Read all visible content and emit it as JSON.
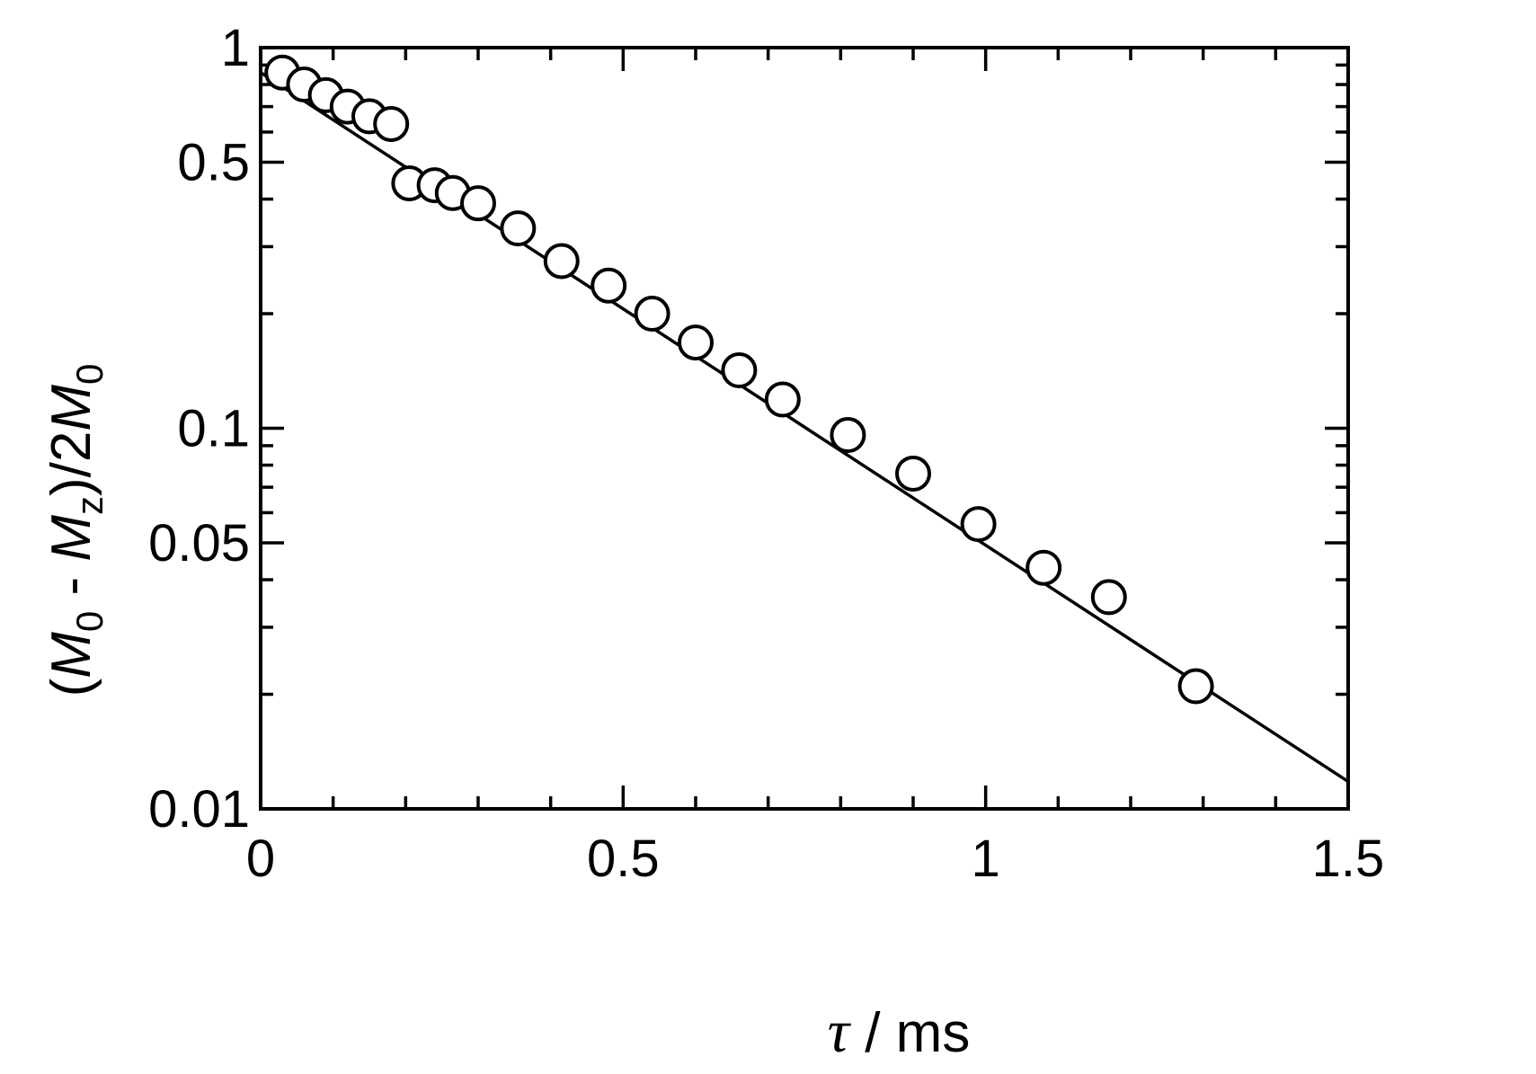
{
  "chart_data": {
    "type": "scatter",
    "xlabel": {
      "symbol": "τ",
      "rest": " / ms"
    },
    "ylabel": {
      "p1": "(",
      "M": "M",
      "sub0": "0",
      "minus": " - ",
      "Mz": "M",
      "subz": "z",
      "p2": ")/2",
      "M2": "M",
      "sub2": "0"
    },
    "xlim": [
      0,
      1.5
    ],
    "ylim": [
      0.01,
      1
    ],
    "yscale": "log",
    "x_ticks": [
      {
        "value": 0,
        "label": "0"
      },
      {
        "value": 0.5,
        "label": "0.5"
      },
      {
        "value": 1,
        "label": "1"
      },
      {
        "value": 1.5,
        "label": "1.5"
      }
    ],
    "x_minor_ticks": [
      0.1,
      0.2,
      0.3,
      0.4,
      0.6,
      0.7,
      0.8,
      0.9,
      1.1,
      1.2,
      1.3,
      1.4
    ],
    "y_ticks": [
      {
        "value": 1,
        "label": "1"
      },
      {
        "value": 0.5,
        "label": "0.5"
      },
      {
        "value": 0.1,
        "label": "0.1"
      },
      {
        "value": 0.05,
        "label": "0.05"
      },
      {
        "value": 0.01,
        "label": "0.01"
      }
    ],
    "y_minor_ticks": [
      0.02,
      0.03,
      0.04,
      0.06,
      0.07,
      0.08,
      0.09,
      0.2,
      0.3,
      0.4,
      0.6,
      0.7,
      0.8,
      0.9
    ],
    "points": [
      {
        "x": 0.03,
        "y": 0.86
      },
      {
        "x": 0.06,
        "y": 0.8
      },
      {
        "x": 0.09,
        "y": 0.75
      },
      {
        "x": 0.12,
        "y": 0.7
      },
      {
        "x": 0.15,
        "y": 0.66
      },
      {
        "x": 0.18,
        "y": 0.63
      },
      {
        "x": 0.205,
        "y": 0.44
      },
      {
        "x": 0.24,
        "y": 0.435
      },
      {
        "x": 0.265,
        "y": 0.415
      },
      {
        "x": 0.3,
        "y": 0.39
      },
      {
        "x": 0.355,
        "y": 0.335
      },
      {
        "x": 0.415,
        "y": 0.275
      },
      {
        "x": 0.48,
        "y": 0.237
      },
      {
        "x": 0.54,
        "y": 0.2
      },
      {
        "x": 0.6,
        "y": 0.168
      },
      {
        "x": 0.66,
        "y": 0.142
      },
      {
        "x": 0.72,
        "y": 0.119
      },
      {
        "x": 0.81,
        "y": 0.096
      },
      {
        "x": 0.9,
        "y": 0.076
      },
      {
        "x": 0.99,
        "y": 0.056
      },
      {
        "x": 1.08,
        "y": 0.043
      },
      {
        "x": 1.17,
        "y": 0.036
      },
      {
        "x": 1.29,
        "y": 0.021
      }
    ],
    "fit_line": {
      "x": [
        0,
        1.5
      ],
      "y": [
        0.86,
        0.0118
      ]
    }
  }
}
